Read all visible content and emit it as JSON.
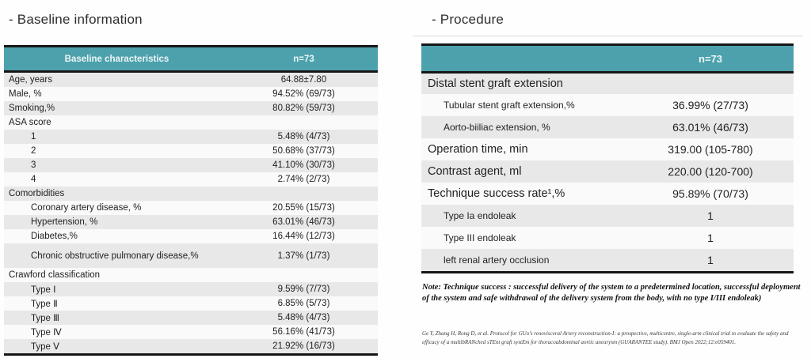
{
  "colors": {
    "header_teal": "#4da1ac",
    "stripe_gray": "#e8e8e8",
    "border_black": "#161616",
    "header_text": "#edf5f6"
  },
  "left": {
    "title": "- Baseline information",
    "header": {
      "label": "Baseline characteristics",
      "value": "n=73"
    },
    "rows": [
      {
        "label": "Age, years",
        "value": "64.88±7.80",
        "indent": 0
      },
      {
        "label": "Male, %",
        "value": "94.52% (69/73)",
        "indent": 0
      },
      {
        "label": "Smoking,%",
        "value": "80.82% (59/73)",
        "indent": 0
      },
      {
        "label": "ASA score",
        "value": "",
        "indent": 0
      },
      {
        "label": "1",
        "value": "5.48% (4/73)",
        "indent": 1
      },
      {
        "label": "2",
        "value": "50.68% (37/73)",
        "indent": 1
      },
      {
        "label": "3",
        "value": "41.10% (30/73)",
        "indent": 1
      },
      {
        "label": "4",
        "value": "2.74% (2/73)",
        "indent": 1
      },
      {
        "label": "Comorbidities",
        "value": "",
        "indent": 0
      },
      {
        "label": "Coronary artery disease, %",
        "value": "20.55% (15/73)",
        "indent": 1
      },
      {
        "label": "Hypertension, %",
        "value": "63.01% (46/73)",
        "indent": 1
      },
      {
        "label": "Diabetes,%",
        "value": "16.44% (12/73)",
        "indent": 1
      },
      {
        "label": "Chronic obstructive pulmonary disease,%",
        "value": "1.37% (1/73)",
        "indent": 1,
        "tall": true
      },
      {
        "label": "Crawford classification",
        "value": "",
        "indent": 0
      },
      {
        "label": "Type Ⅰ",
        "value": "9.59% (7/73)",
        "indent": 1
      },
      {
        "label": "Type Ⅱ",
        "value": "6.85% (5/73)",
        "indent": 1
      },
      {
        "label": "Type Ⅲ",
        "value": "5.48% (4/73)",
        "indent": 1
      },
      {
        "label": "Type Ⅳ",
        "value": "56.16% (41/73)",
        "indent": 1
      },
      {
        "label": "Type Ⅴ",
        "value": "21.92% (16/73)",
        "indent": 1
      }
    ]
  },
  "right": {
    "title": "- Procedure",
    "header": {
      "label": "",
      "value": "n=73"
    },
    "rows": [
      {
        "label": "Distal stent graft extension",
        "value": "",
        "size": "main"
      },
      {
        "label": "Tubular stent graft extension,%",
        "value": "36.99% (27/73)",
        "size": "sub"
      },
      {
        "label": "Aorto-biiliac extension, %",
        "value": "63.01% (46/73)",
        "size": "sub"
      },
      {
        "label": "Operation time, min",
        "value": "319.00 (105-780)",
        "size": "main"
      },
      {
        "label": "Contrast agent, ml",
        "value": "220.00 (120-700)",
        "size": "main"
      },
      {
        "label": "Technique success rate¹,%",
        "value": "95.89% (70/73)",
        "size": "main"
      },
      {
        "label": "Type Ia endoleak",
        "value": "1",
        "size": "sub"
      },
      {
        "label": "Type III endoleak",
        "value": "1",
        "size": "sub"
      },
      {
        "label": "left renal artery occlusion",
        "value": "1",
        "size": "sub"
      }
    ],
    "note": "Note: Technique success : successful delivery of the system to a predetermined location, successful deployment of the system and safe withdrawal of the delivery system from the body, with no type I/III endoleak)",
    "citation": "Ge Y, Zhang H, Rong D, et al. Protocol for GUo's renovisceral Artery reconstruction-I: a prospective, multicentre, single-arm clinical trial to evaluate the safety and efficacy of a multibRANched sTEnt graft systEm for thoracoabdominal aortic aneurysm (GUARANTEE study). BMJ Open 2022;12:e059401."
  }
}
